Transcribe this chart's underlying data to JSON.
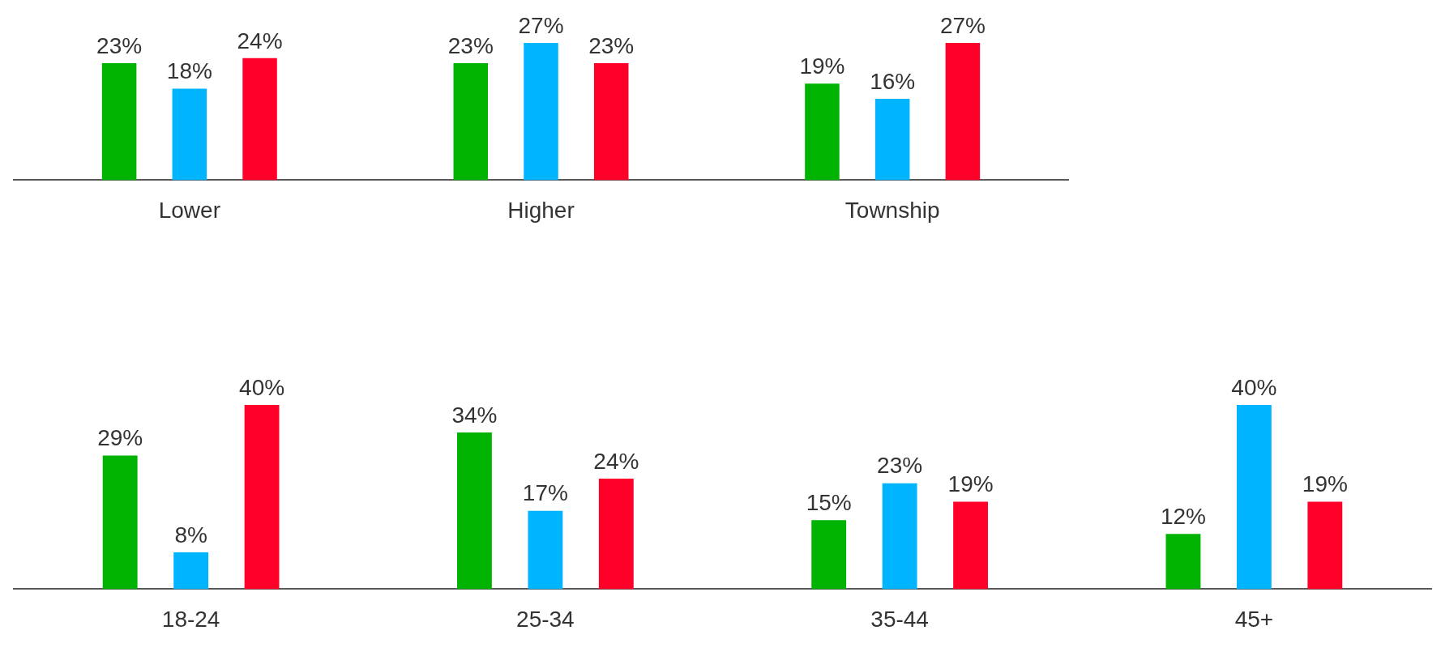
{
  "chart_data": [
    {
      "type": "bar",
      "categories": [
        "Lower",
        "Higher",
        "Township"
      ],
      "grid": false,
      "legend": false,
      "tick_labels": "x",
      "series": [
        {
          "color": "#00b300",
          "values": [
            23,
            23,
            19
          ],
          "value_labels": [
            "23%",
            "23%",
            "19%"
          ]
        },
        {
          "color": "#00b4ff",
          "values": [
            18,
            27,
            16
          ],
          "value_labels": [
            "18%",
            "27%",
            "16%"
          ]
        },
        {
          "color": "#ff0029",
          "values": [
            24,
            23,
            27
          ],
          "value_labels": [
            "24%",
            "23%",
            "27%"
          ]
        }
      ]
    },
    {
      "type": "bar",
      "categories": [
        "18-24",
        "25-34",
        "35-44",
        "45+"
      ],
      "grid": false,
      "legend": false,
      "tick_labels": "x",
      "series": [
        {
          "color": "#00b300",
          "values": [
            29,
            34,
            15,
            12
          ],
          "value_labels": [
            "29%",
            "34%",
            "15%",
            "12%"
          ]
        },
        {
          "color": "#00b4ff",
          "values": [
            8,
            17,
            23,
            40
          ],
          "value_labels": [
            "8%",
            "17%",
            "23%",
            "40%"
          ]
        },
        {
          "color": "#ff0029",
          "values": [
            40,
            24,
            19,
            19
          ],
          "value_labels": [
            "40%",
            "24%",
            "19%",
            "19%"
          ]
        }
      ]
    }
  ]
}
